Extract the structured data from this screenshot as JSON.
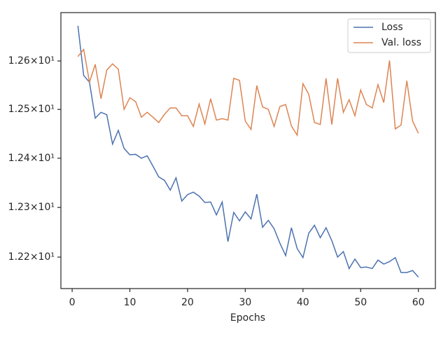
{
  "chart_data": {
    "type": "line",
    "xlabel": "Epochs",
    "x": [
      1,
      2,
      3,
      4,
      5,
      6,
      7,
      8,
      9,
      10,
      11,
      12,
      13,
      14,
      15,
      16,
      17,
      18,
      19,
      20,
      21,
      22,
      23,
      24,
      25,
      26,
      27,
      28,
      29,
      30,
      31,
      32,
      33,
      34,
      35,
      36,
      37,
      38,
      39,
      40,
      41,
      42,
      43,
      44,
      45,
      46,
      47,
      48,
      49,
      50,
      51,
      52,
      53,
      54,
      55,
      56,
      57,
      58,
      59,
      60
    ],
    "series": [
      {
        "name": "Loss",
        "color": "#4c72b0",
        "values": [
          12.673,
          12.57,
          12.556,
          12.482,
          12.494,
          12.489,
          12.429,
          12.457,
          12.42,
          12.407,
          12.408,
          12.4,
          12.405,
          12.384,
          12.362,
          12.355,
          12.335,
          12.36,
          12.313,
          12.326,
          12.331,
          12.323,
          12.31,
          12.311,
          12.285,
          12.311,
          12.231,
          12.29,
          12.273,
          12.291,
          12.277,
          12.327,
          12.26,
          12.274,
          12.257,
          12.228,
          12.203,
          12.259,
          12.217,
          12.199,
          12.248,
          12.264,
          12.239,
          12.259,
          12.233,
          12.2,
          12.211,
          12.177,
          12.196,
          12.179,
          12.18,
          12.177,
          12.194,
          12.186,
          12.191,
          12.199,
          12.169,
          12.169,
          12.173,
          12.16
        ]
      },
      {
        "name": "Val. loss",
        "color": "#dd8452",
        "values": [
          12.609,
          12.624,
          12.556,
          12.593,
          12.522,
          12.581,
          12.594,
          12.583,
          12.5,
          12.524,
          12.516,
          12.484,
          12.494,
          12.484,
          12.473,
          12.49,
          12.503,
          12.503,
          12.487,
          12.487,
          12.465,
          12.511,
          12.47,
          12.522,
          12.478,
          12.481,
          12.478,
          12.564,
          12.56,
          12.476,
          12.459,
          12.549,
          12.505,
          12.5,
          12.465,
          12.506,
          12.51,
          12.466,
          12.447,
          12.553,
          12.531,
          12.473,
          12.469,
          12.564,
          12.469,
          12.564,
          12.494,
          12.52,
          12.487,
          12.54,
          12.51,
          12.503,
          12.551,
          12.514,
          12.601,
          12.46,
          12.468,
          12.559,
          12.476,
          12.451
        ]
      }
    ],
    "xlim": [
      -1.95,
      62.95
    ],
    "xticks": [
      0,
      10,
      20,
      30,
      40,
      50,
      60
    ],
    "ylim": [
      12.137,
      12.7006
    ],
    "yscale": "log",
    "yticks": [
      {
        "value": 12.2,
        "label": "1.22×10¹"
      },
      {
        "value": 12.3,
        "label": "1.23×10¹"
      },
      {
        "value": 12.4,
        "label": "1.24×10¹"
      },
      {
        "value": 12.5,
        "label": "1.25×10¹"
      },
      {
        "value": 12.6,
        "label": "1.26×10¹"
      }
    ],
    "grid": false,
    "legend": "upper right"
  }
}
